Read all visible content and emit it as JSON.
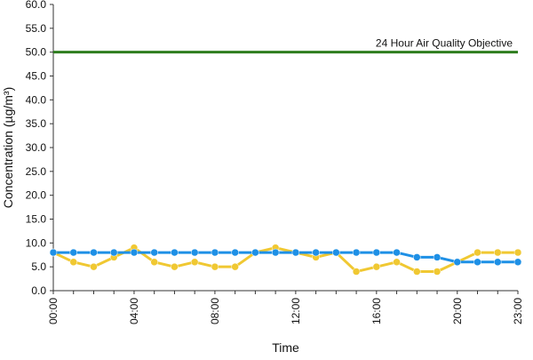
{
  "chart_data": {
    "type": "line",
    "title": "",
    "xlabel": "Time",
    "ylabel": "Concentration (µg/m³)",
    "ylim": [
      0,
      60
    ],
    "yticks": [
      "0.0",
      "5.0",
      "10.0",
      "15.0",
      "20.0",
      "25.0",
      "30.0",
      "35.0",
      "40.0",
      "45.0",
      "50.0",
      "55.0",
      "60.0"
    ],
    "ytick_values": [
      0,
      5,
      10,
      15,
      20,
      25,
      30,
      35,
      40,
      45,
      50,
      55,
      60
    ],
    "xlim": [
      0,
      23
    ],
    "x": [
      0,
      1,
      2,
      3,
      4,
      5,
      6,
      7,
      8,
      9,
      10,
      11,
      12,
      13,
      14,
      15,
      16,
      17,
      18,
      19,
      20,
      21,
      22,
      23
    ],
    "xticks": [
      "00:00",
      "04:00",
      "08:00",
      "12:00",
      "16:00",
      "20:00",
      "23:00"
    ],
    "xtick_values": [
      0,
      4,
      8,
      12,
      16,
      20,
      23
    ],
    "grid": false,
    "series": [
      {
        "color": "#f0c832",
        "values": [
          8,
          6,
          5,
          7,
          9,
          6,
          5,
          6,
          5,
          5,
          8,
          9,
          8,
          7,
          8,
          4,
          5,
          6,
          4,
          4,
          6,
          8,
          8,
          8
        ]
      },
      {
        "color": "#1e90e6",
        "values": [
          8,
          8,
          8,
          8,
          8,
          8,
          8,
          8,
          8,
          8,
          8,
          8,
          8,
          8,
          8,
          8,
          8,
          8,
          7,
          7,
          6,
          6,
          6,
          6
        ]
      }
    ],
    "reference_line": {
      "value": 50,
      "label": "24 Hour Air Quality Objective",
      "color": "#2e7d1e"
    }
  }
}
